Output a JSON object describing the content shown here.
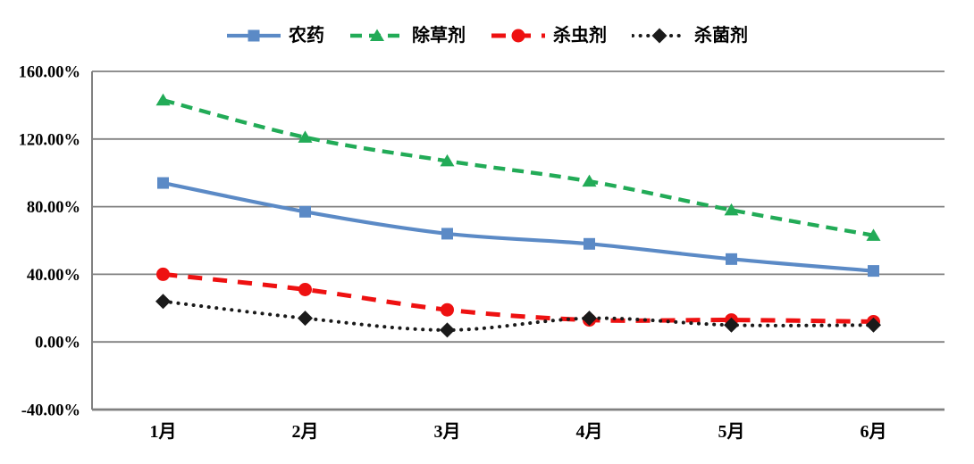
{
  "chart_data": {
    "type": "line",
    "categories": [
      "1月",
      "2月",
      "3月",
      "4月",
      "5月",
      "6月"
    ],
    "series": [
      {
        "name": "农药",
        "color": "#5B8AC6",
        "marker": "square",
        "line_style": "solid",
        "values": [
          94,
          77,
          64,
          58,
          49,
          42
        ]
      },
      {
        "name": "除草剂",
        "color": "#22AB57",
        "marker": "triangle",
        "line_style": "dash",
        "values": [
          143,
          121,
          107,
          95,
          78,
          63
        ]
      },
      {
        "name": "杀虫剂",
        "color": "#EE1111",
        "marker": "circle",
        "line_style": "long-dash",
        "values": [
          40,
          31,
          19,
          13,
          13,
          12
        ]
      },
      {
        "name": "杀菌剂",
        "color": "#1A1A1A",
        "marker": "diamond",
        "line_style": "dot",
        "values": [
          24,
          14,
          7,
          14,
          10,
          10
        ]
      }
    ],
    "title": "",
    "xlabel": "",
    "ylabel": "",
    "ylim": [
      -40,
      160
    ],
    "ytick_step": 40,
    "y_tick_labels": [
      "160.00%",
      "120.00%",
      "80.00%",
      "40.00%",
      "0.00%",
      "-40.00%"
    ],
    "grid": true,
    "legend_position": "top",
    "grid_color": "#808080",
    "text_color": "#000000",
    "background": "#FFFFFF"
  }
}
